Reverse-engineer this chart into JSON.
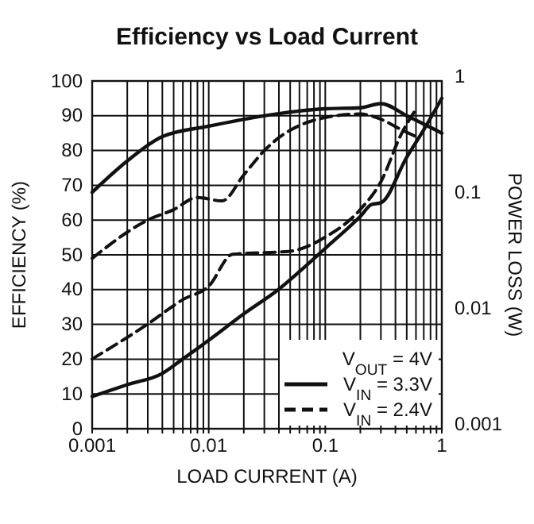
{
  "chart_data": {
    "type": "line",
    "title": "Efficiency vs Load Current",
    "xlabel": "LOAD CURRENT (A)",
    "ylabel": "POWER LOSS (W)",
    "y2label": "EFFICIENCY (%)",
    "legend_title": "V$_{OUT}$ = 4V",
    "log": "xy",
    "grid": true,
    "legend": "bottom right",
    "marker": "none",
    "xlim": [
      0.001,
      1
    ],
    "xticks": [
      0.001,
      {
        "value": 0.002,
        "label": null
      },
      {
        "value": 0.003,
        "label": null
      },
      {
        "value": 0.004,
        "label": null
      },
      {
        "value": 0.005,
        "label": null
      },
      {
        "value": 0.006,
        "label": null
      },
      {
        "value": 0.007,
        "label": null
      },
      {
        "value": 0.008,
        "label": null
      },
      {
        "value": 0.009,
        "label": null
      },
      0.01,
      {
        "value": 0.02,
        "label": null
      },
      {
        "value": 0.03,
        "label": null
      },
      {
        "value": 0.04,
        "label": null
      },
      {
        "value": 0.05,
        "label": null
      },
      {
        "value": 0.06,
        "label": null
      },
      {
        "value": 0.07,
        "label": null
      },
      {
        "value": 0.08,
        "label": null
      },
      {
        "value": 0.09,
        "label": null
      },
      0.1,
      {
        "value": 0.2,
        "label": null
      },
      {
        "value": 0.3,
        "label": null
      },
      {
        "value": 0.4,
        "label": null
      },
      {
        "value": 0.5,
        "label": null
      },
      {
        "value": 0.6,
        "label": null
      },
      {
        "value": 0.7,
        "label": null
      },
      {
        "value": 0.8,
        "label": null
      },
      {
        "value": 0.9,
        "label": null
      },
      1
    ],
    "ylim": [
      0.001,
      1
    ],
    "yticks": [
      0.001,
      0.01,
      0.1,
      1
    ],
    "y2lim": [
      0,
      100
    ],
    "y2ticks": [
      0,
      10,
      20,
      30,
      40,
      50,
      60,
      70,
      80,
      90,
      100
    ],
    "series": [
      {
        "name": "V$_{IN}$ = 3.3V",
        "color": "#111111",
        "line_style": "solid",
        "axis": "y2",
        "x": [
          0.001,
          0.002,
          0.004,
          0.01,
          0.03,
          0.1,
          0.2,
          0.3,
          0.5,
          1
        ],
        "values": [
          68,
          77,
          84,
          87,
          90,
          92,
          92.3,
          93.5,
          90,
          85
        ]
      },
      {
        "name": "V$_{IN}$ = 2.4V",
        "color": "#111111",
        "line_style": "dashed",
        "axis": "y2",
        "x": [
          0.001,
          0.003,
          0.005,
          0.008,
          0.013,
          0.02,
          0.03,
          0.1,
          0.2,
          0.3,
          0.45,
          0.6
        ],
        "values": [
          49,
          60,
          63,
          66.5,
          65.5,
          73,
          80,
          89.5,
          90.5,
          89,
          86,
          84
        ]
      },
      {
        "color": "#111111",
        "line_style": "solid",
        "x": [
          0.001,
          0.002,
          0.004,
          0.006,
          0.01,
          0.02,
          0.04,
          0.07,
          0.1,
          0.2,
          0.25,
          0.3,
          0.5,
          0.7,
          1
        ],
        "values": [
          0.0019,
          0.0024,
          0.003,
          0.004,
          0.0058,
          0.0098,
          0.016,
          0.026,
          0.036,
          0.068,
          0.086,
          0.089,
          0.22,
          0.38,
          0.71
        ]
      },
      {
        "color": "#111111",
        "line_style": "dashed",
        "x": [
          0.001,
          0.003,
          0.006,
          0.01,
          0.016,
          0.05,
          0.1,
          0.2,
          0.3,
          0.45,
          0.6
        ],
        "values": [
          0.004,
          0.008,
          0.013,
          0.017,
          0.032,
          0.034,
          0.045,
          0.078,
          0.135,
          0.35,
          0.57
        ]
      }
    ]
  }
}
